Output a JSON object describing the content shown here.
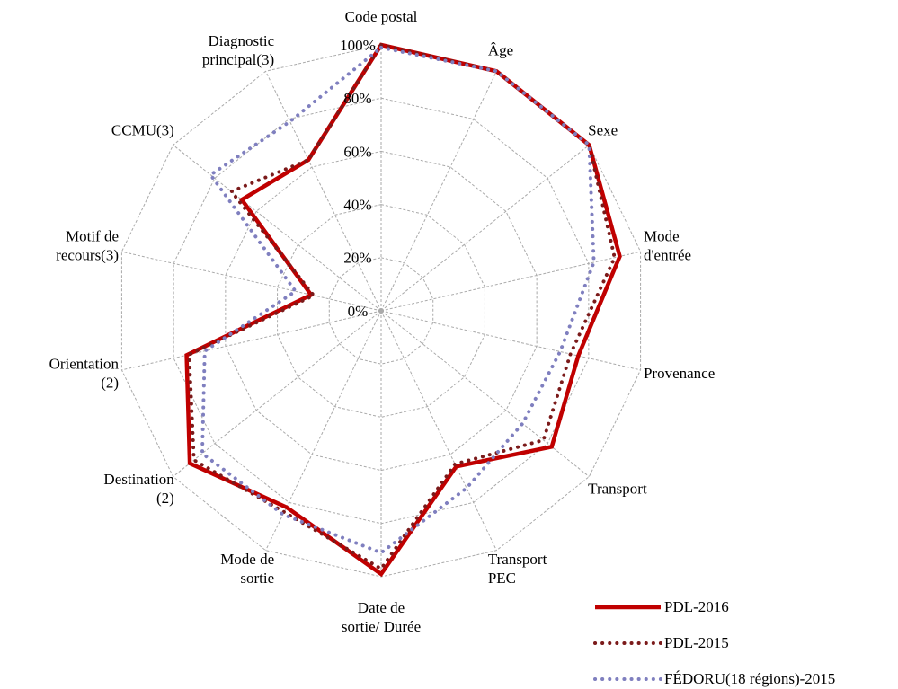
{
  "chart_data": {
    "type": "radar",
    "categories": [
      [
        "Code postal"
      ],
      [
        "Âge"
      ],
      [
        "Sexe"
      ],
      [
        "Mode",
        "d'entrée"
      ],
      [
        "Provenance"
      ],
      [
        "Transport"
      ],
      [
        "Transport",
        "PEC"
      ],
      [
        "Date de",
        "sortie/ Durée"
      ],
      [
        "Mode de",
        "sortie"
      ],
      [
        "Destination",
        "(2)"
      ],
      [
        "Orientation",
        "(2)"
      ],
      [
        "Motif de",
        "recours(3)"
      ],
      [
        "CCMU(3)"
      ],
      [
        "Diagnostic",
        "principal(3)"
      ]
    ],
    "ylim": [
      0,
      100
    ],
    "yticks": [
      {
        "value": 0,
        "label": "0%"
      },
      {
        "value": 20,
        "label": "20%"
      },
      {
        "value": 40,
        "label": "40%"
      },
      {
        "value": 60,
        "label": "60%"
      },
      {
        "value": 80,
        "label": "80%"
      },
      {
        "value": 100,
        "label": "100%"
      }
    ],
    "grid": true,
    "series": [
      {
        "name": "PDL-2016",
        "color": "#c00000",
        "style": "solid",
        "values": [
          100,
          100,
          100,
          92,
          76,
          82,
          65,
          99,
          82,
          92,
          75,
          27,
          67,
          63
        ]
      },
      {
        "name": "PDL-2015",
        "color": "#7b1a1a",
        "style": "dotted",
        "values": [
          100,
          100,
          100,
          90,
          73,
          78,
          64,
          97,
          84,
          90,
          74,
          26,
          72,
          63
        ]
      },
      {
        "name": "FÉDORU(18 régions)-2015",
        "color": "#7f7fbf",
        "style": "dotted",
        "values": [
          99,
          100,
          100,
          82,
          69,
          68,
          74,
          91,
          85,
          86,
          68,
          33,
          82,
          79
        ]
      }
    ]
  }
}
